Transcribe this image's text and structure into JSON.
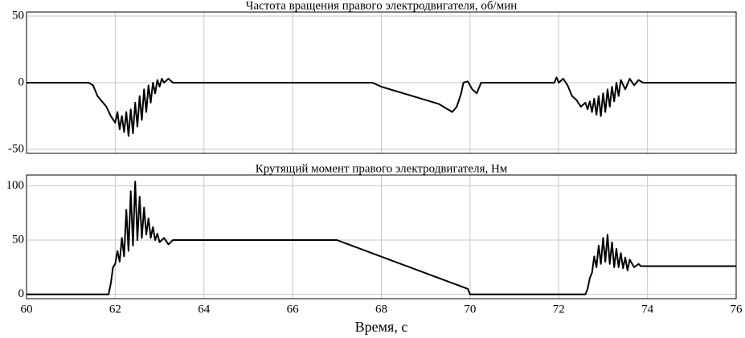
{
  "chart_data": [
    {
      "type": "line",
      "title": "Частота вращения правого электродвигателя, об/мин",
      "color": "#000000",
      "grid": true,
      "xlim": [
        60,
        76
      ],
      "xticks": [
        60,
        62,
        64,
        66,
        68,
        70,
        72,
        74,
        76
      ],
      "ylim": [
        -53,
        53
      ],
      "yticks": [
        -50,
        0,
        50
      ],
      "x": [
        60,
        61.4,
        61.5,
        61.6,
        61.8,
        61.9,
        62.0,
        62.05,
        62.1,
        62.15,
        62.2,
        62.25,
        62.3,
        62.35,
        62.4,
        62.45,
        62.5,
        62.55,
        62.6,
        62.65,
        62.7,
        62.75,
        62.8,
        62.85,
        62.9,
        62.95,
        63.0,
        63.05,
        63.1,
        63.2,
        63.3,
        64,
        67.8,
        68,
        68.5,
        69,
        69.3,
        69.5,
        69.6,
        69.7,
        69.8,
        69.85,
        69.95,
        70.05,
        70.15,
        70.25,
        70.35,
        71.9,
        71.95,
        72.0,
        72.1,
        72.2,
        72.3,
        72.4,
        72.5,
        72.6,
        72.65,
        72.7,
        72.75,
        72.8,
        72.85,
        72.9,
        72.95,
        73.0,
        73.05,
        73.1,
        73.15,
        73.2,
        73.25,
        73.3,
        73.35,
        73.4,
        73.5,
        73.6,
        73.7,
        73.8,
        73.9,
        76
      ],
      "values": [
        0,
        0,
        -2,
        -10,
        -18,
        -25,
        -30,
        -22,
        -35,
        -25,
        -37,
        -22,
        -40,
        -20,
        -38,
        -15,
        -33,
        -10,
        -28,
        -5,
        -22,
        -2,
        -15,
        0,
        -8,
        2,
        -3,
        3,
        0,
        3,
        0,
        0,
        0,
        -3,
        -8,
        -13,
        -16,
        -20,
        -22,
        -18,
        -8,
        0,
        1,
        -5,
        -8,
        0,
        0,
        0,
        4,
        0,
        3,
        -2,
        -10,
        -13,
        -18,
        -15,
        -20,
        -14,
        -22,
        -12,
        -24,
        -10,
        -25,
        -8,
        -22,
        -5,
        -18,
        -3,
        -14,
        0,
        -10,
        2,
        -5,
        3,
        -2,
        2,
        0,
        0
      ]
    },
    {
      "type": "line",
      "title": "Крутящий момент правого электродвигателя, Нм",
      "xlabel": "Время, с",
      "color": "#000000",
      "grid": true,
      "xlim": [
        60,
        76
      ],
      "xticks": [
        60,
        62,
        64,
        66,
        68,
        70,
        72,
        74,
        76
      ],
      "ylim": [
        -4,
        110
      ],
      "yticks": [
        0,
        50,
        100
      ],
      "x": [
        60,
        61.85,
        61.9,
        61.95,
        62.0,
        62.05,
        62.1,
        62.15,
        62.2,
        62.25,
        62.3,
        62.35,
        62.4,
        62.45,
        62.5,
        62.55,
        62.6,
        62.65,
        62.7,
        62.75,
        62.8,
        62.85,
        62.9,
        62.95,
        63.0,
        63.1,
        63.2,
        63.3,
        63.4,
        67,
        69.95,
        70,
        72.6,
        72.65,
        72.7,
        72.75,
        72.8,
        72.85,
        72.9,
        72.95,
        73.0,
        73.05,
        73.1,
        73.15,
        73.2,
        73.25,
        73.3,
        73.35,
        73.4,
        73.45,
        73.5,
        73.55,
        73.6,
        73.7,
        73.8,
        73.85,
        76
      ],
      "values": [
        0,
        0,
        10,
        25,
        28,
        40,
        30,
        52,
        35,
        78,
        40,
        95,
        45,
        104,
        50,
        90,
        52,
        80,
        55,
        70,
        52,
        62,
        50,
        56,
        48,
        52,
        46,
        50,
        50,
        50,
        5,
        0,
        0,
        5,
        15,
        20,
        35,
        25,
        45,
        28,
        52,
        30,
        55,
        28,
        48,
        25,
        42,
        25,
        38,
        24,
        34,
        22,
        32,
        25,
        28,
        26,
        26
      ]
    }
  ]
}
